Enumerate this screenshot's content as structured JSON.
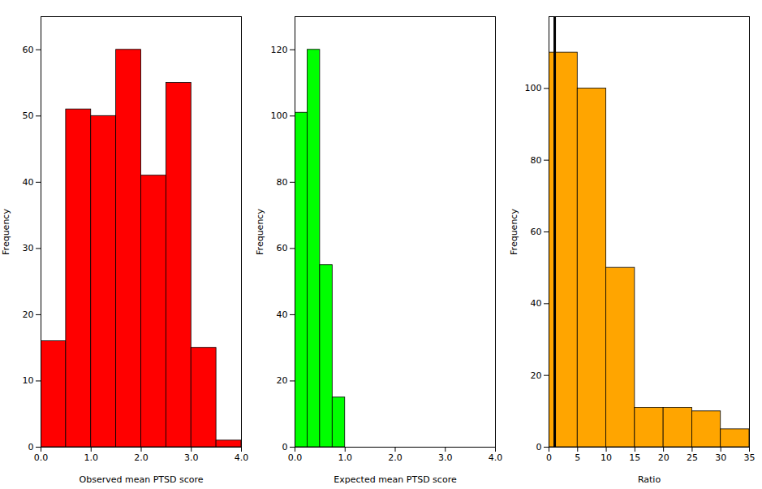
{
  "chart_data": [
    {
      "type": "histogram",
      "bins": [
        0,
        0.5,
        1.0,
        1.5,
        2.0,
        2.5,
        3.0,
        3.5,
        4.0
      ],
      "values": [
        16,
        51,
        50,
        60,
        41,
        55,
        15,
        1
      ],
      "color": "#FF0000",
      "xlabel": "Observed mean PTSD score",
      "ylabel": "Frequency",
      "xlim": [
        0,
        4
      ],
      "xticks": [
        0,
        1,
        2,
        3,
        4
      ],
      "ylim": [
        0,
        65
      ],
      "yticks": [
        0,
        10,
        20,
        30,
        40,
        50,
        60
      ]
    },
    {
      "type": "histogram",
      "bins": [
        0,
        0.25,
        0.5,
        0.75,
        1.0
      ],
      "values": [
        101,
        120,
        55,
        15
      ],
      "color": "#00FF00",
      "xlabel": "Expected mean PTSD score",
      "ylabel": "Frequency",
      "xlim": [
        0,
        4
      ],
      "xticks": [
        0,
        1,
        2,
        3,
        4
      ],
      "ylim": [
        0,
        130
      ],
      "yticks": [
        0,
        20,
        40,
        60,
        80,
        100,
        120
      ]
    },
    {
      "type": "histogram",
      "bins": [
        0,
        5,
        10,
        15,
        20,
        25,
        30,
        35
      ],
      "values": [
        110,
        100,
        50,
        11,
        11,
        10,
        5
      ],
      "color": "#FFA500",
      "xlabel": "Ratio",
      "ylabel": "Frequency",
      "xlim": [
        0,
        35
      ],
      "xticks": [
        0,
        5,
        10,
        15,
        20,
        25,
        30,
        35
      ],
      "ylim": [
        0,
        120
      ],
      "yticks": [
        0,
        20,
        40,
        60,
        80,
        100
      ],
      "vline": 1.0
    }
  ]
}
